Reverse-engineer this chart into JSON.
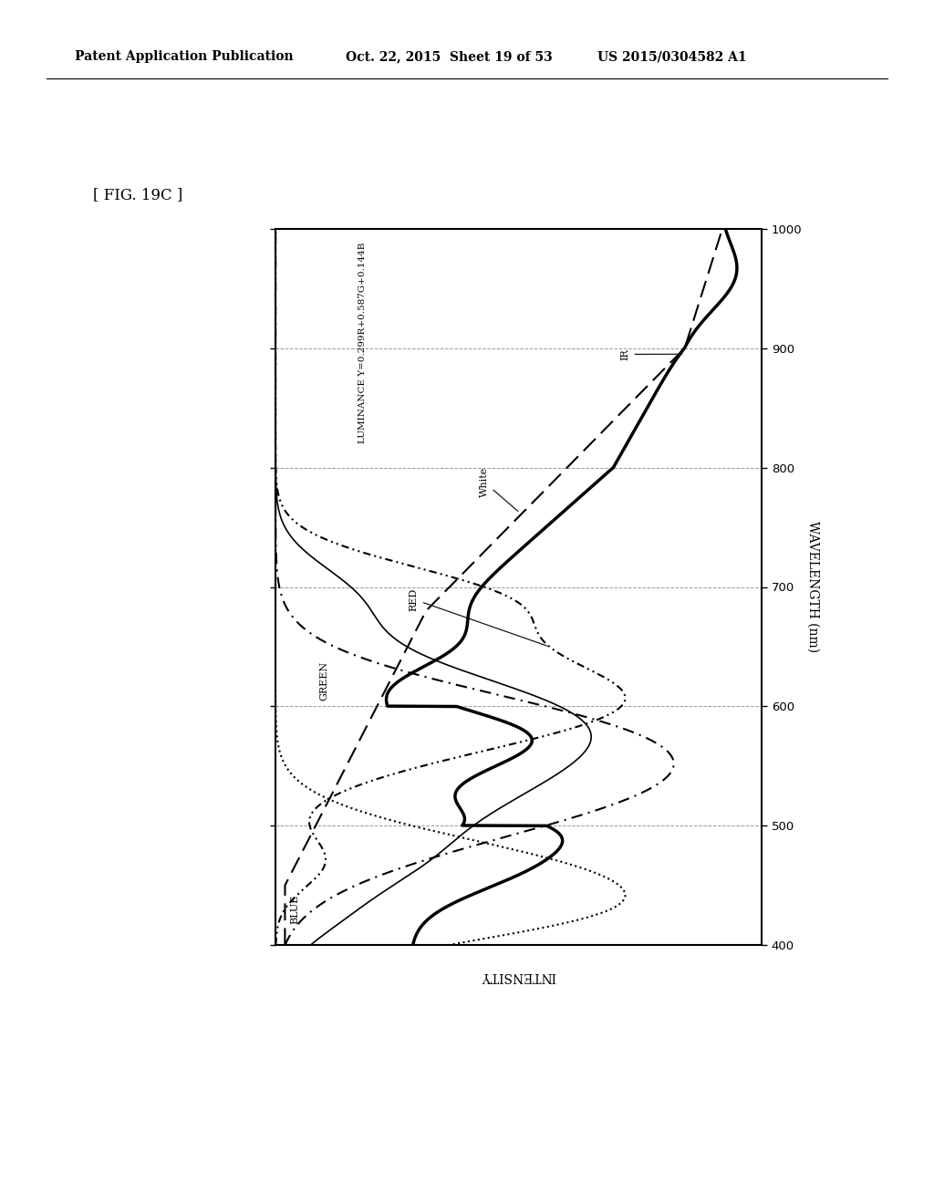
{
  "title_text": "[ FIG. 19C ]",
  "header_left": "Patent Application Publication",
  "header_mid": "Oct. 22, 2015  Sheet 19 of 53",
  "header_right": "US 2015/0304582 A1",
  "xlabel_rotated": "INTENSITY",
  "ylabel": "WAVELENGTH (nm)",
  "ylim": [
    400,
    1000
  ],
  "yticks": [
    400,
    500,
    600,
    700,
    800,
    900,
    1000
  ],
  "background_color": "#ffffff",
  "plot_bg": "#ffffff",
  "label_luminance": "LUMINANCE Y=0.299R+0.587G+0.144B",
  "label_red": "RED",
  "label_green": "GREEN",
  "label_blue": "BLUE",
  "label_white": "White",
  "label_ir": "IR",
  "grid_wavelengths": [
    500,
    600,
    700,
    800,
    900
  ]
}
